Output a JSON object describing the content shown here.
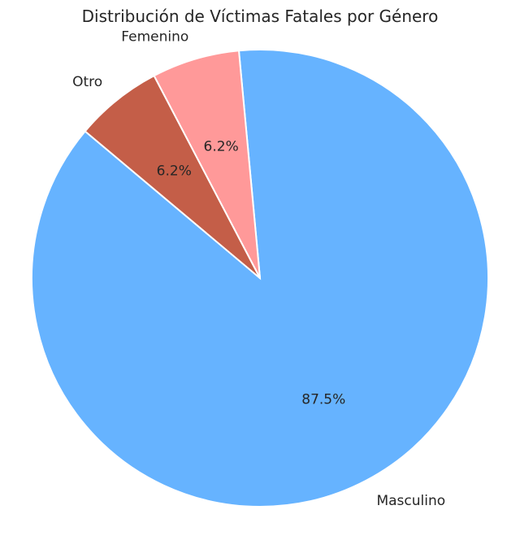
{
  "chart_data": {
    "type": "pie",
    "title": "Distribución de Víctimas Fatales por Género",
    "categories": [
      "Masculino",
      "Femenino",
      "Otro"
    ],
    "values": [
      87.5,
      6.2,
      6.2
    ],
    "percent_labels": [
      "87.5%",
      "6.2%",
      "6.2%"
    ],
    "colors": [
      "#66b3ff",
      "#ff9999",
      "#c45e48"
    ],
    "start_angle_deg": 140,
    "legend": "none"
  }
}
